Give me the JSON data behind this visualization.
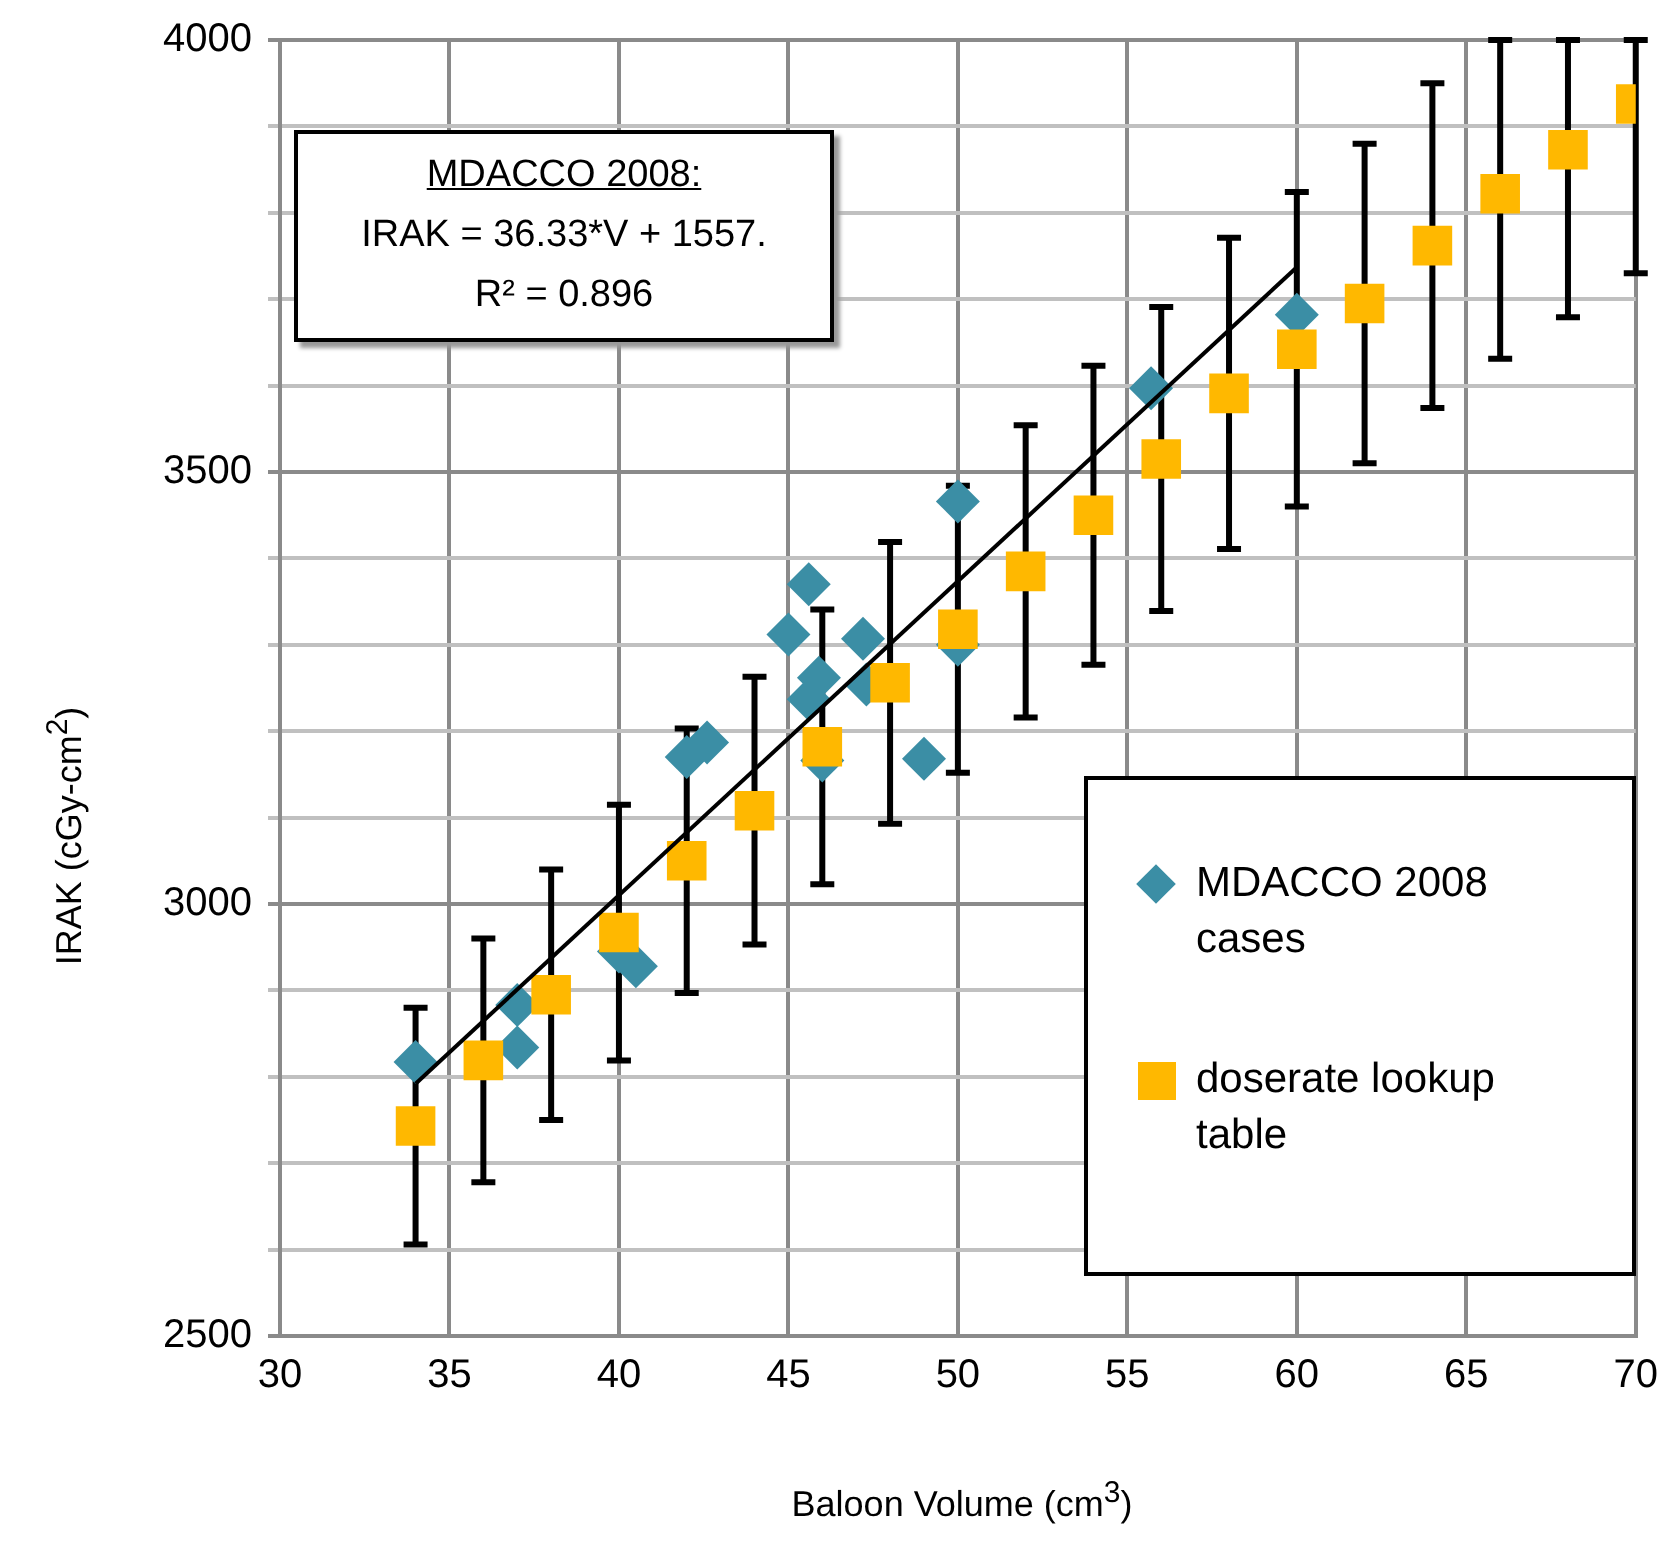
{
  "chart_data": {
    "type": "scatter",
    "xlabel": "Baloon Volume (cm$^{3}$)",
    "ylabel": "IRAK (cGy-cm$^{2}$)",
    "xlim": [
      30,
      70
    ],
    "xticks": [
      30,
      35,
      40,
      45,
      50,
      55,
      60,
      65,
      70
    ],
    "ylim": [
      2500,
      4000
    ],
    "yticks": [
      2500,
      {
        "value": 2600,
        "label": null
      },
      {
        "value": 2700,
        "label": null
      },
      {
        "value": 2800,
        "label": null
      },
      {
        "value": 2900,
        "label": null
      },
      3000,
      {
        "value": 3100,
        "label": null
      },
      {
        "value": 3200,
        "label": null
      },
      {
        "value": 3300,
        "label": null
      },
      {
        "value": 3400,
        "label": null
      },
      3500,
      {
        "value": 3600,
        "label": null
      },
      {
        "value": 3700,
        "label": null
      },
      {
        "value": 3800,
        "label": null
      },
      {
        "value": 3900,
        "label": null
      },
      4000
    ],
    "grid": true,
    "legend": "bottom right",
    "annotations": [
      "MDACCO 2008:",
      "IRAK = 36.33*V + 1557.",
      "R² = 0.896"
    ],
    "series": [
      {
        "name": "MDACCO 2008 cases",
        "type": "scatter",
        "marker": "diamond",
        "color": "#3b8ea5",
        "x": [
          34,
          37,
          37,
          40,
          40.5,
          42,
          42.6,
          45,
          45.6,
          45.9,
          45.6,
          46,
          47.2,
          47.3,
          49,
          50,
          50,
          55.7,
          60
        ],
        "values": [
          2817,
          2883,
          2834,
          2945,
          2928,
          3170,
          3187,
          3312,
          3370,
          3262,
          3237,
          3166,
          3307,
          3254,
          3168,
          3300,
          3466,
          3597,
          3682
        ]
      },
      {
        "name": "doserate lookup table",
        "type": "scatter",
        "marker": "square",
        "color": "#ffb800",
        "x": [
          34,
          36,
          38,
          40,
          42,
          44,
          46,
          48,
          50,
          52,
          54,
          56,
          58,
          60,
          62,
          64,
          66,
          68,
          70
        ],
        "values": [
          2743,
          2819,
          2895,
          2967,
          3050,
          3108,
          3182,
          3256,
          3318,
          3385,
          3450,
          3515,
          3591,
          3642,
          3695,
          3762,
          3822,
          3873,
          3926
        ],
        "errors": [
          137,
          141,
          145,
          148,
          153,
          155,
          159,
          163,
          166,
          169,
          173,
          176,
          180,
          182,
          185,
          188,
          [
            3631,
            4000
          ],
          [
            3679,
            4000
          ],
          [
            3730,
            4000
          ]
        ]
      },
      {
        "type": "line",
        "marker": "none",
        "color": "#000000",
        "x": [
          34,
          60
        ],
        "values": [
          2792,
          3737
        ]
      }
    ]
  }
}
